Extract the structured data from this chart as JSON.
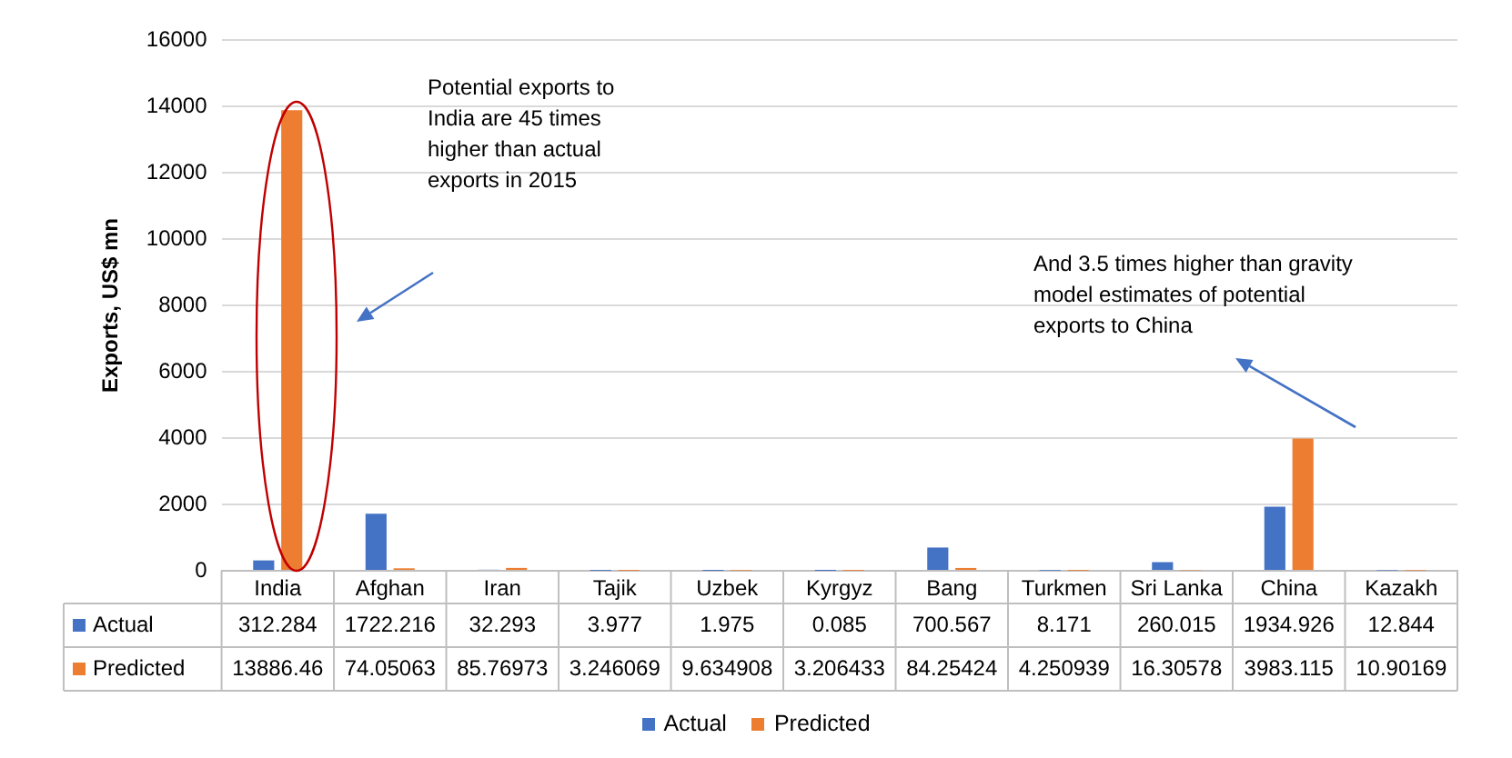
{
  "chart_data": {
    "type": "bar",
    "ylabel": "Exports, US$ mn",
    "categories": [
      "India",
      "Afghan",
      "Iran",
      "Tajik",
      "Uzbek",
      "Kyrgyz",
      "Bang",
      "Turkmen",
      "Sri Lanka",
      "China",
      "Kazakh"
    ],
    "series": [
      {
        "name": "Actual",
        "color": "#4472c4",
        "values": [
          312.284,
          1722.216,
          32.293,
          3.977,
          1.975,
          0.085,
          700.567,
          8.171,
          260.015,
          1934.926,
          12.844
        ]
      },
      {
        "name": "Predicted",
        "color": "#ed7d31",
        "values": [
          13886.46,
          74.05063,
          85.76973,
          3.246069,
          9.634908,
          3.206433,
          84.25424,
          4.250939,
          16.30578,
          3983.115,
          10.90169
        ]
      }
    ],
    "ylim": [
      0,
      16000
    ],
    "yticks": [
      0,
      2000,
      4000,
      6000,
      8000,
      10000,
      12000,
      14000,
      16000
    ],
    "grid": "y",
    "legend": "bottom",
    "data_labels": true,
    "annotations": [
      "Potential exports to India are 45 times higher than actual exports in 2015",
      "And 3.5 times higher than gravity model estimates of potential exports to China"
    ]
  }
}
